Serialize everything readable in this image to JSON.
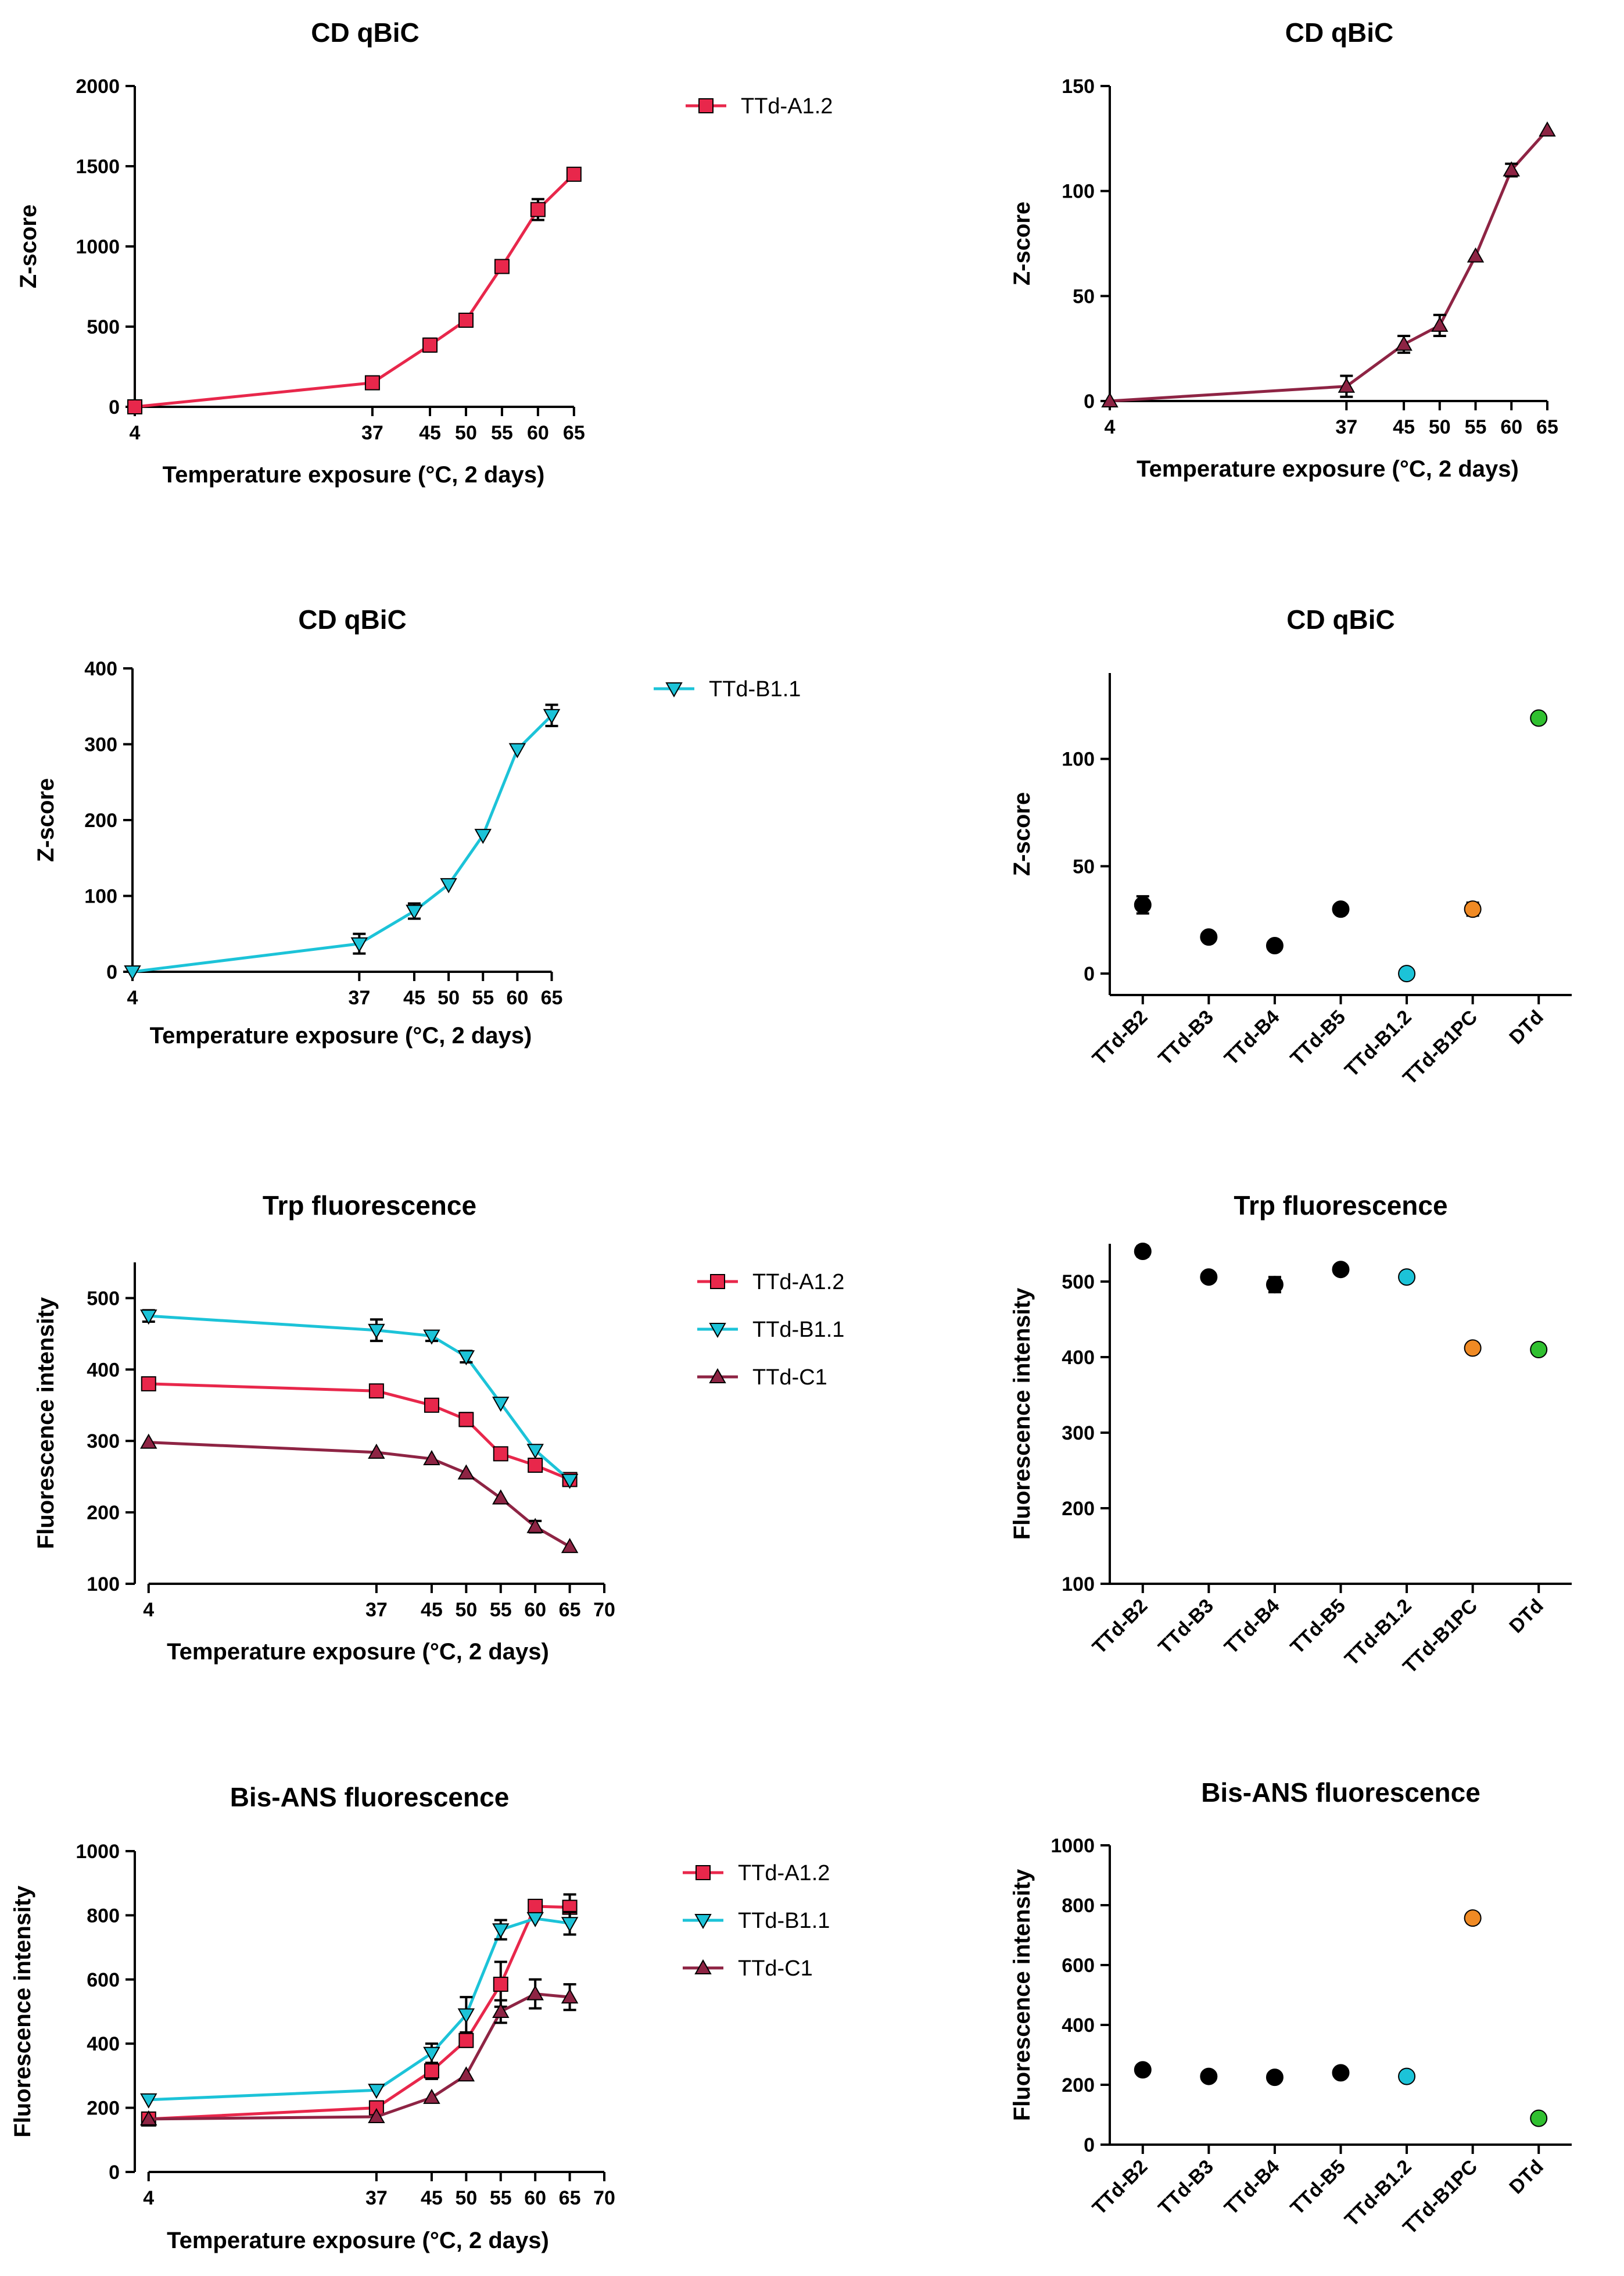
{
  "chart_data": [
    {
      "type": "line",
      "title": "CD qBiC",
      "xlabel": "Temperature exposure (°C, 2 days)",
      "ylabel": "Z-score",
      "xlim": [
        4,
        68
      ],
      "ylim": [
        0,
        2000
      ],
      "xticks": [
        4,
        37,
        45,
        50,
        55,
        60,
        65
      ],
      "yticks": [
        0,
        500,
        1000,
        1500,
        2000
      ],
      "x": [
        4,
        37,
        45,
        50,
        55,
        60,
        65
      ],
      "series": [
        {
          "name": "TTd-A1.2",
          "color": "#e8274b",
          "marker": "square",
          "values": [
            0,
            150,
            385,
            540,
            875,
            1230,
            1450
          ],
          "errors": [
            0,
            15,
            40,
            15,
            15,
            65,
            25
          ]
        }
      ]
    },
    {
      "type": "line",
      "title": "CD qBiC",
      "xlabel": "Temperature exposure (°C, 2 days)",
      "ylabel": "Z-score",
      "xlim": [
        4,
        68
      ],
      "ylim": [
        0,
        150
      ],
      "xticks": [
        4,
        37,
        45,
        50,
        55,
        60,
        65
      ],
      "yticks": [
        0,
        50,
        100,
        150
      ],
      "x": [
        4,
        37,
        45,
        50,
        55,
        60,
        65
      ],
      "series": [
        {
          "name": "",
          "color": "#8e2444",
          "marker": "triangle-up",
          "values": [
            0,
            7,
            27,
            36,
            69,
            110,
            129
          ],
          "errors": [
            0,
            5,
            4,
            5,
            0,
            3,
            0
          ]
        }
      ]
    },
    {
      "type": "line",
      "title": "CD qBiC",
      "xlabel": "Temperature exposure (°C, 2 days)",
      "ylabel": "Z-score",
      "xlim": [
        4,
        68
      ],
      "ylim": [
        0,
        400
      ],
      "xticks": [
        4,
        37,
        45,
        50,
        55,
        60,
        65
      ],
      "yticks": [
        0,
        100,
        200,
        300,
        400
      ],
      "x": [
        4,
        37,
        45,
        50,
        55,
        60,
        65
      ],
      "series": [
        {
          "name": "TTd-B1.1",
          "color": "#1cc3d8",
          "marker": "triangle-down",
          "values": [
            0,
            37,
            80,
            115,
            180,
            293,
            338
          ],
          "errors": [
            0,
            13,
            10,
            0,
            0,
            0,
            14
          ]
        }
      ]
    },
    {
      "type": "scatter",
      "title": "CD qBiC",
      "xlabel": "",
      "ylabel": "Z-score",
      "ylim": [
        -10,
        140
      ],
      "yticks": [
        0,
        50,
        100
      ],
      "categories": [
        "TTd-B2",
        "TTd-B3",
        "TTd-B4",
        "TTd-B5",
        "TTd-B1.2",
        "TTd-B1PC",
        "DTd"
      ],
      "values": [
        32,
        17,
        13,
        30,
        0,
        30,
        119
      ],
      "errors": [
        4,
        0,
        0,
        0,
        0,
        3,
        0
      ],
      "colors": [
        "#000000",
        "#000000",
        "#000000",
        "#000000",
        "#1cc3d8",
        "#f08a24",
        "#30c030"
      ]
    },
    {
      "type": "line",
      "title": "Trp fluorescence",
      "xlabel": "Temperature exposure (°C, 2 days)",
      "ylabel": "Fluorescence intensity",
      "xlim": [
        2,
        70
      ],
      "ylim": [
        100,
        550
      ],
      "xticks": [
        4,
        37,
        45,
        50,
        55,
        60,
        65,
        70
      ],
      "yticks": [
        100,
        200,
        300,
        400,
        500
      ],
      "x": [
        4,
        37,
        45,
        50,
        55,
        60,
        65
      ],
      "series": [
        {
          "name": "TTd-A1.2",
          "color": "#e8274b",
          "marker": "square",
          "values": [
            380,
            370,
            350,
            330,
            282,
            266,
            246
          ],
          "errors": [
            6,
            3,
            3,
            9,
            0,
            0,
            0
          ]
        },
        {
          "name": "TTd-B1.1",
          "color": "#1cc3d8",
          "marker": "triangle-down",
          "values": [
            475,
            455,
            447,
            418,
            353,
            287,
            245
          ],
          "errors": [
            8,
            15,
            7,
            8,
            0,
            0,
            0
          ]
        },
        {
          "name": "TTd-C1",
          "color": "#8e2444",
          "marker": "triangle-up",
          "values": [
            298,
            284,
            275,
            255,
            220,
            180,
            152
          ],
          "errors": [
            0,
            0,
            0,
            0,
            0,
            8,
            0
          ]
        }
      ]
    },
    {
      "type": "scatter",
      "title": "Trp fluorescence",
      "xlabel": "",
      "ylabel": "Fluorescence intensity",
      "ylim": [
        100,
        550
      ],
      "yticks": [
        100,
        200,
        300,
        400,
        500
      ],
      "categories": [
        "TTd-B2",
        "TTd-B3",
        "TTd-B4",
        "TTd-B5",
        "TTd-B1.2",
        "TTd-B1PC",
        "DTd"
      ],
      "values": [
        540,
        506,
        496,
        516,
        506,
        412,
        410
      ],
      "errors": [
        7,
        0,
        10,
        0,
        6,
        0,
        0
      ],
      "colors": [
        "#000000",
        "#000000",
        "#000000",
        "#000000",
        "#1cc3d8",
        "#f08a24",
        "#30c030"
      ]
    },
    {
      "type": "line",
      "title": "Bis-ANS fluorescence",
      "xlabel": "Temperature exposure (°C, 2 days)",
      "ylabel": "Fluorescence intensity",
      "xlim": [
        2,
        70
      ],
      "ylim": [
        0,
        1000
      ],
      "xticks": [
        4,
        37,
        45,
        50,
        55,
        60,
        65,
        70
      ],
      "yticks": [
        0,
        200,
        400,
        600,
        800,
        1000
      ],
      "x": [
        4,
        37,
        45,
        50,
        55,
        60,
        65
      ],
      "series": [
        {
          "name": "TTd-A1.2",
          "color": "#e8274b",
          "marker": "square",
          "values": [
            165,
            200,
            315,
            410,
            585,
            828,
            825
          ],
          "errors": [
            0,
            15,
            25,
            20,
            70,
            0,
            40
          ]
        },
        {
          "name": "TTd-B1.1",
          "color": "#1cc3d8",
          "marker": "triangle-down",
          "values": [
            225,
            255,
            370,
            490,
            755,
            790,
            775
          ],
          "errors": [
            0,
            0,
            30,
            55,
            30,
            0,
            35
          ]
        },
        {
          "name": "TTd-C1",
          "color": "#8e2444",
          "marker": "triangle-up",
          "values": [
            165,
            172,
            232,
            302,
            500,
            555,
            545
          ],
          "errors": [
            0,
            0,
            0,
            0,
            35,
            45,
            40
          ]
        }
      ]
    },
    {
      "type": "scatter",
      "title": "Bis-ANS fluorescence",
      "xlabel": "",
      "ylabel": "Fluorescence intensity",
      "ylim": [
        0,
        1000
      ],
      "yticks": [
        0,
        200,
        400,
        600,
        800,
        1000
      ],
      "categories": [
        "TTd-B2",
        "TTd-B3",
        "TTd-B4",
        "TTd-B5",
        "TTd-B1.2",
        "TTd-B1PC",
        "DTd"
      ],
      "values": [
        250,
        228,
        225,
        240,
        228,
        757,
        88
      ],
      "errors": [
        0,
        0,
        0,
        0,
        10,
        17,
        0
      ],
      "colors": [
        "#000000",
        "#000000",
        "#000000",
        "#000000",
        "#1cc3d8",
        "#f08a24",
        "#30c030"
      ]
    }
  ]
}
